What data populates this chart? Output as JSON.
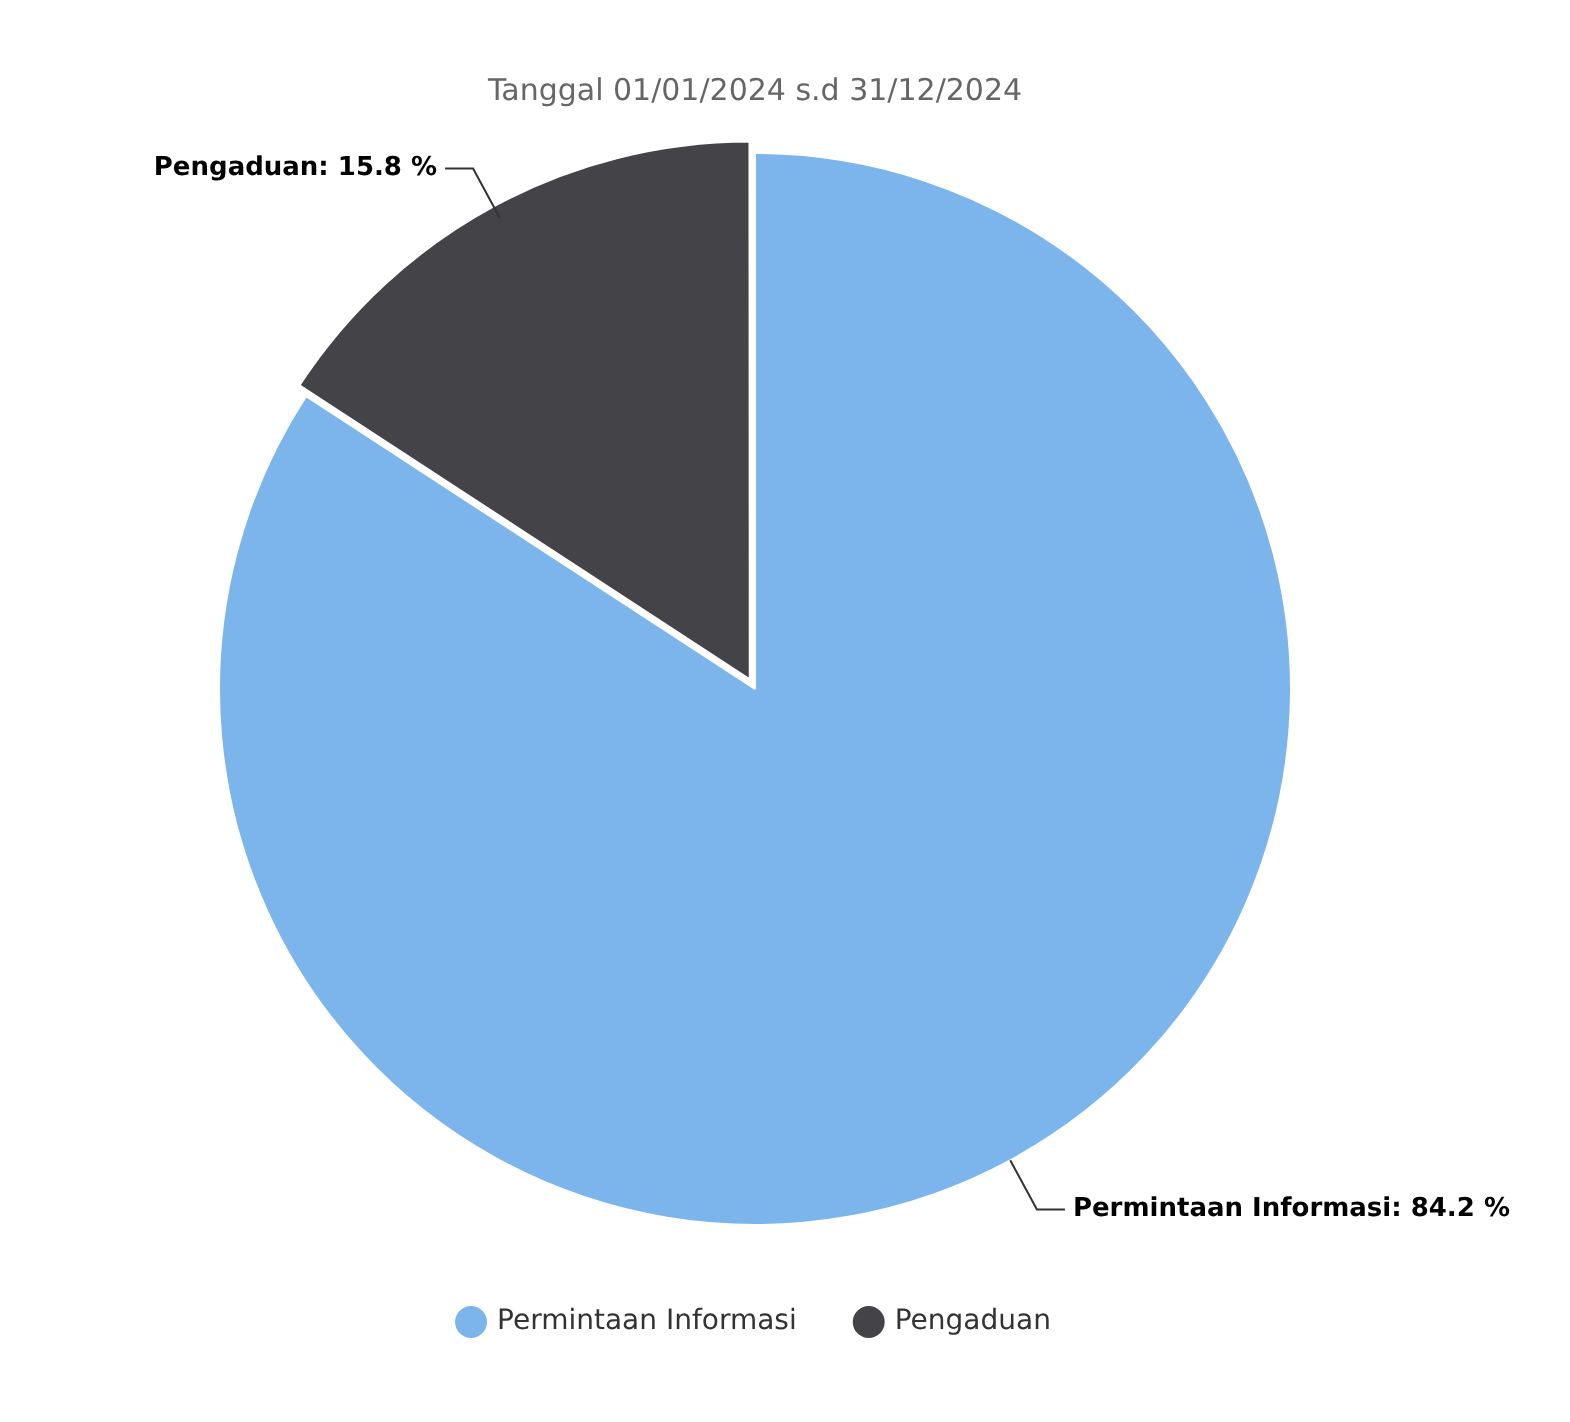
{
  "chart_data": {
    "type": "pie",
    "title": "Tanggal 01/01/2024 s.d 31/12/2024",
    "categories": [
      "Permintaan Informasi",
      "Pengaduan"
    ],
    "values": [
      84.2,
      15.8
    ],
    "colors": [
      "#7cb5ec",
      "#434348"
    ],
    "value_labels": [
      "Permintaan Informasi: 84.2 %",
      "Pengaduan: 15.8 %"
    ],
    "legend": "bottom"
  }
}
